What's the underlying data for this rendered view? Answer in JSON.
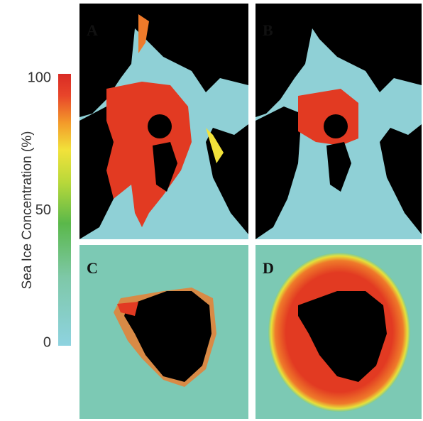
{
  "colorbar": {
    "label": "Sea Ice Concentration (%)",
    "lim": [
      0,
      100
    ],
    "ticks": [
      0,
      50,
      100
    ]
  },
  "panels": [
    {
      "label": "A"
    },
    {
      "label": "B"
    },
    {
      "label": "C"
    },
    {
      "label": "D"
    }
  ]
}
